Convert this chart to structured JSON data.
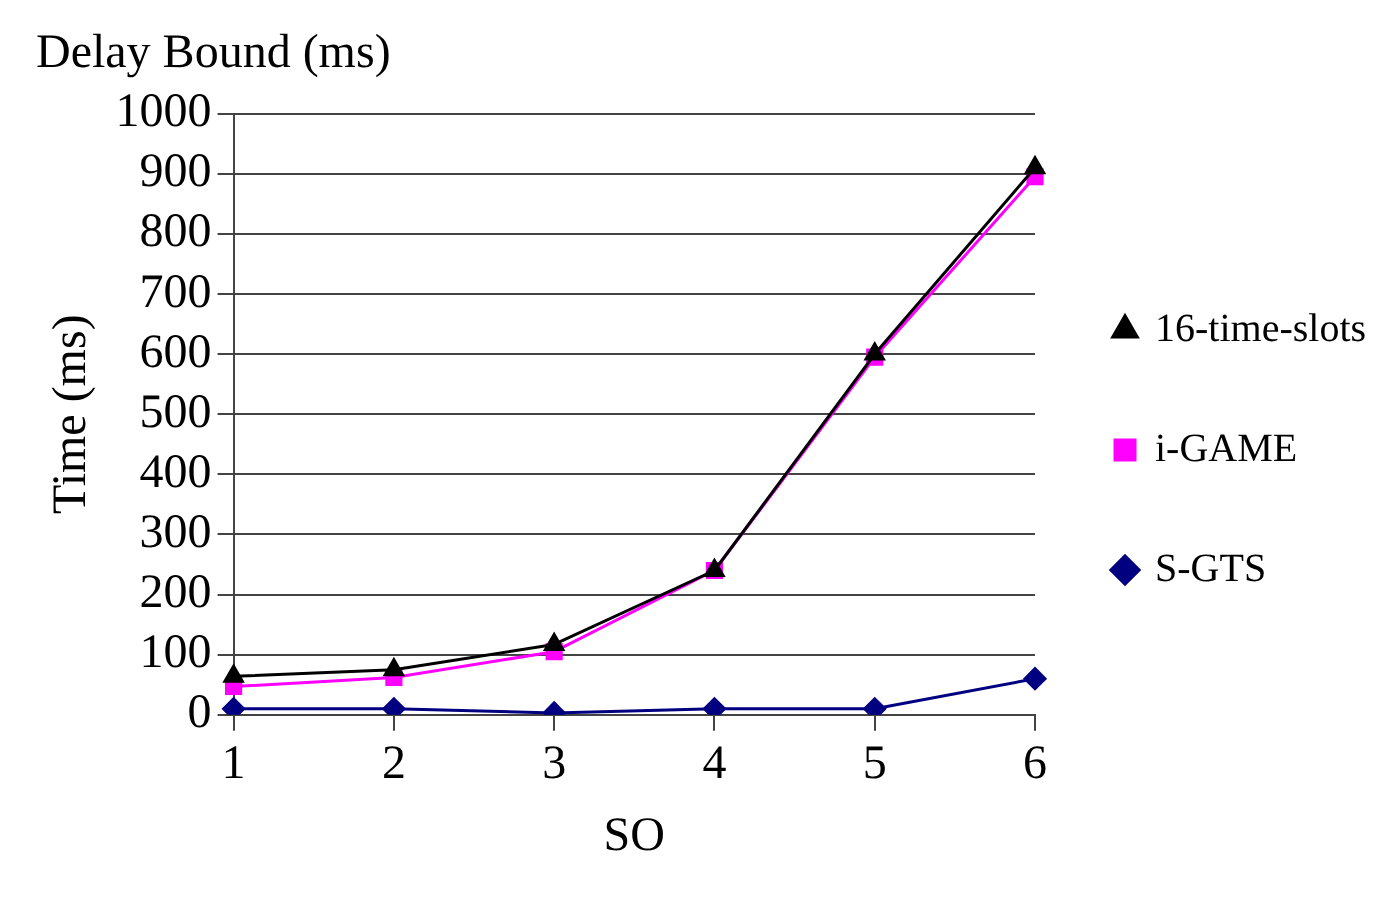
{
  "chart_data": {
    "type": "line",
    "title": "Delay Bound (ms)",
    "xlabel": "SO",
    "ylabel": "Time (ms)",
    "categories": [
      "1",
      "2",
      "3",
      "4",
      "5",
      "6"
    ],
    "series": [
      {
        "name": "S-GTS",
        "color": "#000080",
        "marker": "diamond",
        "values": [
          10,
          10,
          3,
          10,
          10,
          60
        ]
      },
      {
        "name": "i-GAME",
        "color": "#ff00ff",
        "marker": "square",
        "values": [
          47,
          62,
          105,
          240,
          595,
          895
        ]
      },
      {
        "name": "16-time-slots",
        "color": "#000000",
        "marker": "triangle",
        "values": [
          64,
          75,
          117,
          240,
          600,
          910
        ]
      }
    ],
    "ylim": [
      0,
      1000
    ],
    "yticks": [
      0,
      100,
      200,
      300,
      400,
      500,
      600,
      700,
      800,
      900,
      1000
    ],
    "grid": "y",
    "legend": "right"
  }
}
